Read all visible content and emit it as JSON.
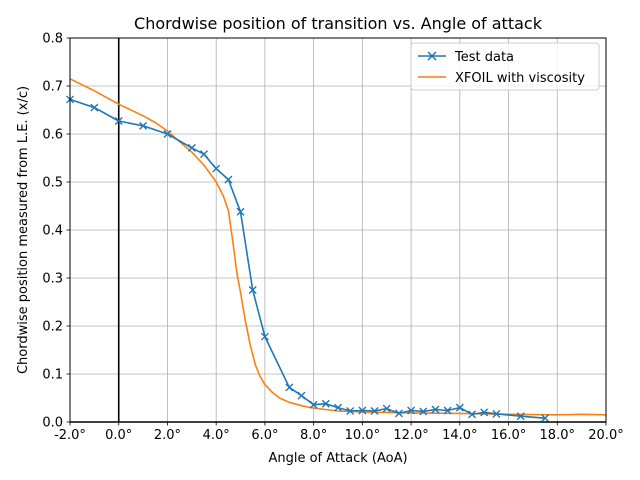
{
  "chart_data": {
    "type": "line",
    "title": "Chordwise position of transition  vs. Angle of attack",
    "xlabel": "Angle of Attack (AoA)",
    "ylabel": "Chordwise position measured from L.E. (x/c)",
    "xlim": [
      -2,
      20
    ],
    "ylim": [
      0,
      0.8
    ],
    "xticks": [
      -2,
      0,
      2,
      4,
      6,
      8,
      10,
      12,
      14,
      16,
      18,
      20
    ],
    "xtick_labels": [
      "-2.0°",
      "0.0°",
      "2.0°",
      "4.0°",
      "6.0°",
      "8.0°",
      "10.0°",
      "12.0°",
      "14.0°",
      "16.0°",
      "18.0°",
      "20.0°"
    ],
    "yticks": [
      0.0,
      0.1,
      0.2,
      0.3,
      0.4,
      0.5,
      0.6,
      0.7,
      0.8
    ],
    "ytick_labels": [
      "0.0",
      "0.1",
      "0.2",
      "0.3",
      "0.4",
      "0.5",
      "0.6",
      "0.7",
      "0.8"
    ],
    "grid": true,
    "legend_position": "top-right",
    "reference_lines": [
      {
        "axis": "x",
        "value": 0
      },
      {
        "axis": "y",
        "value": 0
      }
    ],
    "series": [
      {
        "name": "Test data",
        "color": "#1f77b4",
        "marker": "x",
        "x": [
          -2.0,
          -1.0,
          0.0,
          1.0,
          2.0,
          3.0,
          3.5,
          4.0,
          4.5,
          5.0,
          5.5,
          6.0,
          7.0,
          7.5,
          8.0,
          8.5,
          9.0,
          9.5,
          10.0,
          10.5,
          11.0,
          11.5,
          12.0,
          12.5,
          13.0,
          13.5,
          14.0,
          14.5,
          15.0,
          15.5,
          16.5,
          17.5
        ],
        "y": [
          0.672,
          0.655,
          0.627,
          0.617,
          0.6,
          0.571,
          0.558,
          0.528,
          0.505,
          0.438,
          0.275,
          0.178,
          0.072,
          0.055,
          0.036,
          0.038,
          0.03,
          0.023,
          0.024,
          0.023,
          0.028,
          0.018,
          0.024,
          0.022,
          0.026,
          0.024,
          0.03,
          0.016,
          0.02,
          0.017,
          0.012,
          0.008
        ]
      },
      {
        "name": "XFOIL with viscosity",
        "color": "#ff7f0e",
        "marker": "none",
        "x": [
          -2.0,
          -1.0,
          0.0,
          1.0,
          1.5,
          2.0,
          2.5,
          3.0,
          3.5,
          4.0,
          4.3,
          4.5,
          4.7,
          4.85,
          5.0,
          5.2,
          5.4,
          5.6,
          5.8,
          6.0,
          6.3,
          6.6,
          7.0,
          7.5,
          8.0,
          9.0,
          10.0,
          12.0,
          14.0,
          15.0,
          16.0,
          18.0,
          19.0,
          20.0
        ],
        "y": [
          0.715,
          0.69,
          0.662,
          0.638,
          0.624,
          0.606,
          0.584,
          0.562,
          0.535,
          0.5,
          0.47,
          0.44,
          0.37,
          0.31,
          0.27,
          0.21,
          0.16,
          0.12,
          0.095,
          0.078,
          0.062,
          0.05,
          0.041,
          0.034,
          0.029,
          0.023,
          0.021,
          0.019,
          0.018,
          0.017,
          0.016,
          0.015,
          0.016,
          0.015
        ]
      }
    ]
  }
}
